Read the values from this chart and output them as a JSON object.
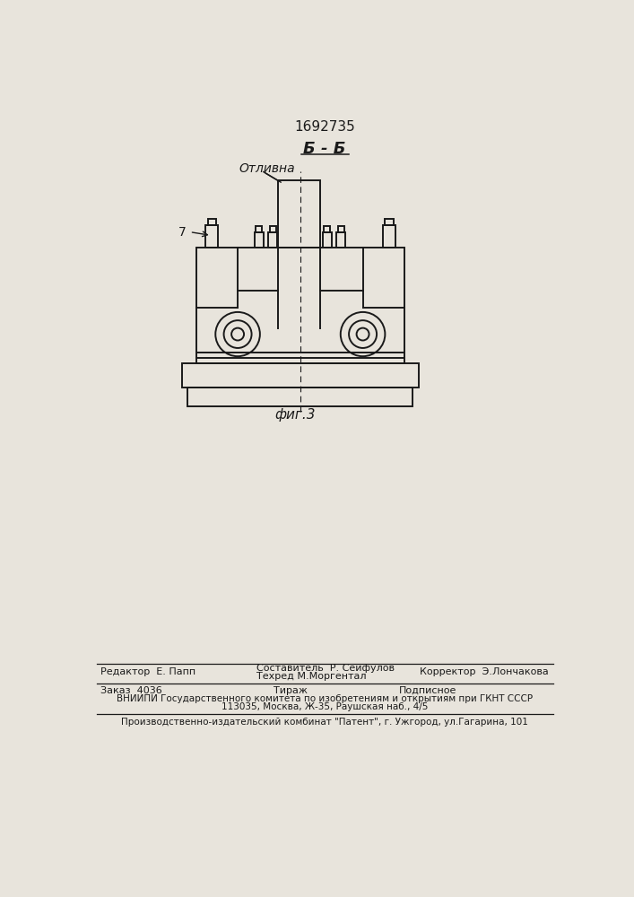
{
  "patent_number": "1692735",
  "section_label": "Б - Б",
  "annotation_label": "Отливна",
  "part_label": "7",
  "fig_label": "фиг.3",
  "footer_line1_left": "Редактор  Е. Папп",
  "footer_line1_center_top": "Составитель  Р. Сейфулов",
  "footer_line1_center_bot": "Техред М.Моргентал",
  "footer_line1_right": "Корректор  Э.Лончакова",
  "footer_line2_col1": "Заказ  4036",
  "footer_line2_col2": "Тираж",
  "footer_line2_col3": "Подписное",
  "footer_line3": "ВНИИПИ Государственного комитета по изобретениям и открытиям при ГКНТ СССР",
  "footer_line4": "113035, Москва, Ж-35, Раушская наб., 4/5",
  "footer_line5": "Производственно-издательский комбинат \"Патент\", г. Ужгород, ул.Гагарина, 101",
  "bg_color": "#e8e4dc",
  "line_color": "#1a1a1a"
}
